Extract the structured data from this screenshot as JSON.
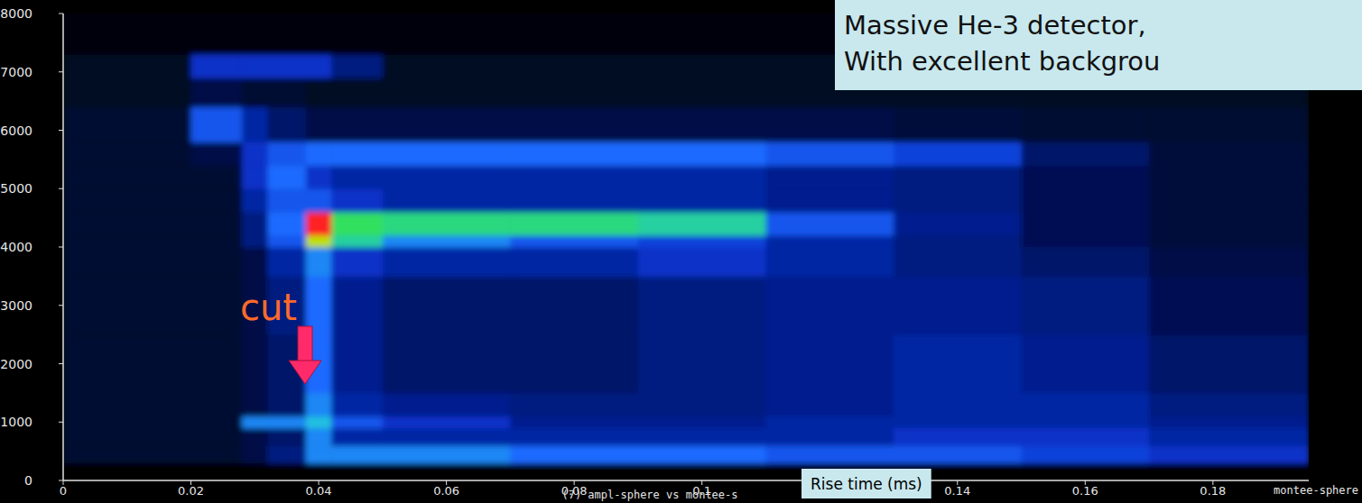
{
  "chart_data": {
    "type": "heatmap",
    "title": "Massive He-3 detector,",
    "subtitle": "With excellent backgrou",
    "x_label": "Rise time (ms)",
    "annotations": [
      "cut",
      "(7) ampl-sphere vs montee-s",
      "montee-sphere"
    ],
    "xlim": [
      0,
      0.195
    ],
    "ylim": [
      0,
      8000
    ],
    "xticks": [
      0,
      0.02,
      0.04,
      0.06,
      0.08,
      0.1,
      0.12,
      0.14,
      0.16,
      0.18
    ],
    "yticks": [
      0,
      1000,
      2000,
      3000,
      4000,
      5000,
      6000,
      7000,
      8000
    ],
    "x_bins": [
      0,
      0.02,
      0.028,
      0.032,
      0.038,
      0.042,
      0.05,
      0.07,
      0.09,
      0.11,
      0.13,
      0.15,
      0.17,
      0.195
    ],
    "y_bins": [
      0,
      300,
      600,
      900,
      1100,
      1500,
      2500,
      3500,
      4000,
      4200,
      4600,
      5000,
      5400,
      5800,
      6400,
      6900,
      7300,
      8000
    ],
    "zlim": [
      0,
      10
    ],
    "cells": [
      [
        0,
        0,
        0,
        0,
        0,
        0,
        0,
        0,
        0,
        0,
        0,
        0,
        0
      ],
      [
        0.3,
        0.3,
        0.5,
        1,
        4,
        4,
        4,
        3.5,
        3.5,
        3,
        3,
        2.5,
        2
      ],
      [
        0.3,
        0.3,
        0.5,
        0.8,
        4,
        1.5,
        1.5,
        1.5,
        1.5,
        1.5,
        2,
        2,
        1.5
      ],
      [
        0.3,
        0.3,
        4,
        4,
        5,
        3,
        2,
        1.2,
        1.2,
        1.5,
        1.5,
        1.5,
        1.2
      ],
      [
        0.3,
        0.3,
        0.5,
        0.8,
        4,
        1.5,
        1.2,
        1,
        1,
        1.2,
        1.5,
        1.5,
        1
      ],
      [
        0.3,
        0.3,
        0.5,
        0.8,
        3.5,
        1.2,
        0.8,
        0.8,
        1,
        1.2,
        1.5,
        1.2,
        0.8
      ],
      [
        0.3,
        0.3,
        0.5,
        1,
        3.5,
        1.2,
        0.8,
        0.8,
        1,
        1.2,
        1.2,
        1,
        0.6
      ],
      [
        0.3,
        0.3,
        0.5,
        1.5,
        4,
        2,
        1.5,
        1.5,
        2,
        1.5,
        1,
        0.8,
        0.5
      ],
      [
        0.3,
        0.3,
        1,
        3,
        9,
        6,
        4,
        3,
        2.5,
        1.5,
        1,
        0.6,
        0.4
      ],
      [
        0.3,
        0.3,
        1,
        3.5,
        10,
        7,
        6.5,
        6.5,
        6,
        3,
        1.2,
        0.6,
        0.4
      ],
      [
        0.3,
        0.3,
        1.5,
        3,
        3,
        2,
        1.5,
        1.5,
        1.5,
        1.2,
        1,
        0.6,
        0.4
      ],
      [
        0.3,
        0.3,
        2,
        3.5,
        2,
        1.5,
        1.5,
        1.5,
        1.5,
        1.2,
        1,
        0.6,
        0.4
      ],
      [
        0.3,
        0.5,
        2,
        3,
        3.5,
        3.5,
        3.5,
        3.5,
        3.5,
        3,
        2.5,
        0.8,
        0.4
      ],
      [
        0.3,
        3,
        1.5,
        0.8,
        0.5,
        0.5,
        0.5,
        0.5,
        0.5,
        0.5,
        0.4,
        0.3,
        0.3
      ],
      [
        0.2,
        0.5,
        0.3,
        0.3,
        0.2,
        0.2,
        0.2,
        0.2,
        0.2,
        0.2,
        0.2,
        0.2,
        0.2
      ],
      [
        0.2,
        2,
        2,
        2,
        2,
        1,
        0.2,
        0.2,
        0.2,
        0.2,
        0.2,
        0.2,
        0.2
      ],
      [
        0.1,
        0.1,
        0.1,
        0.1,
        0.1,
        0.1,
        0.1,
        0.1,
        0.1,
        0.1,
        0.1,
        0.1,
        0.1
      ]
    ]
  }
}
